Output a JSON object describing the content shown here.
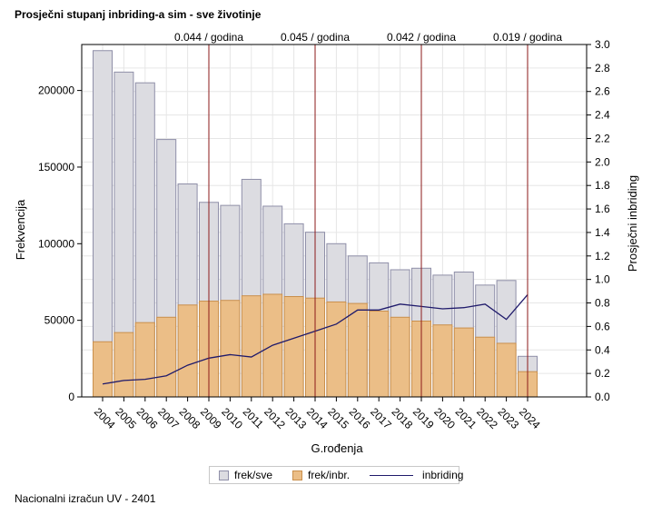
{
  "title": "Prosječni stupanj inbriding-a sim - sve životinje",
  "footnote": "Nacionalni izračun UV - 2401",
  "colors": {
    "all_bar_fill": "#dcdce1",
    "all_bar_stroke": "#8f8fa8",
    "inb_bar_fill": "#ebbe87",
    "inb_bar_stroke": "#c98f4c",
    "line": "#1f1a6b",
    "marker": "#8b1a1a",
    "grid": "#e6e6e6"
  },
  "chart_data": {
    "type": "bar",
    "title": "Prosječni stupanj inbriding-a sim - sve životinje",
    "xlabel": "G.rođenja",
    "ylabel": "Frekvencija",
    "y2label": "Prosječni inbriding",
    "categories": [
      "2004",
      "2005",
      "2006",
      "2007",
      "2008",
      "2009",
      "2010",
      "2011",
      "2012",
      "2013",
      "2014",
      "2015",
      "2016",
      "2017",
      "2018",
      "2019",
      "2020",
      "2021",
      "2022",
      "2023",
      "2024"
    ],
    "ylim": [
      0,
      230000
    ],
    "yticks": [
      0,
      50000,
      100000,
      150000,
      200000
    ],
    "y2lim": [
      0,
      3.0
    ],
    "y2ticks": [
      "0.0",
      "0.2",
      "0.4",
      "0.6",
      "0.8",
      "1.0",
      "1.2",
      "1.4",
      "1.6",
      "1.8",
      "2.0",
      "2.2",
      "2.4",
      "2.6",
      "2.8",
      "3.0"
    ],
    "grid": true,
    "legend_position": "bottom",
    "series": [
      {
        "name": "frek/sve",
        "type": "bar",
        "values": [
          226000,
          212000,
          205000,
          168000,
          139000,
          127000,
          125000,
          142000,
          124500,
          113000,
          107500,
          100000,
          92000,
          87500,
          83000,
          84000,
          79500,
          81500,
          73000,
          76000,
          26500
        ]
      },
      {
        "name": "frek/inbr.",
        "type": "bar",
        "values": [
          36000,
          42000,
          48500,
          52000,
          60000,
          62500,
          63000,
          66000,
          67000,
          65500,
          64500,
          62000,
          61000,
          56000,
          52000,
          49500,
          47000,
          45000,
          39000,
          35000,
          16500
        ]
      },
      {
        "name": "inbriding",
        "type": "line",
        "axis": "right",
        "values": [
          0.11,
          0.14,
          0.15,
          0.18,
          0.27,
          0.33,
          0.36,
          0.34,
          0.44,
          0.5,
          0.56,
          0.62,
          0.74,
          0.74,
          0.79,
          0.77,
          0.75,
          0.76,
          0.79,
          0.66,
          0.87
        ]
      }
    ],
    "annotations": [
      {
        "x": "2009",
        "text": "0.044 / godina"
      },
      {
        "x": "2014",
        "text": "0.045 / godina"
      },
      {
        "x": "2019",
        "text": "0.042 / godina"
      },
      {
        "x": "2024",
        "text": "0.019 / godina"
      }
    ]
  }
}
